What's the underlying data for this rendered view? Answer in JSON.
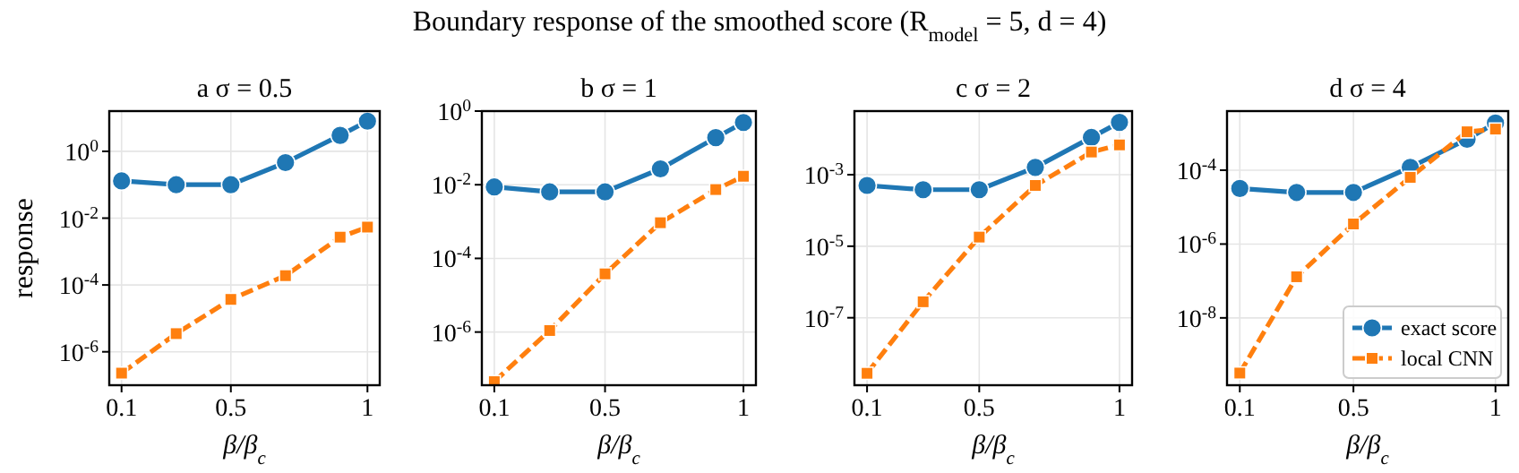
{
  "chart_data": [
    {
      "type": "line",
      "title": "a   σ = 0.5",
      "xlabel": "β/β$_{c}$",
      "ylabel": "response",
      "log": "y",
      "grid": true,
      "legend": false,
      "x": [
        0.1,
        0.3,
        0.5,
        0.7,
        0.9,
        1.0
      ],
      "xlim": [
        0.055,
        1.045
      ],
      "xticks": [
        0.1,
        0.5,
        1
      ],
      "ylim": [
        1e-07,
        16
      ],
      "yticks": [
        {
          "value": 1e-06,
          "label": "10$^{-6}$"
        },
        {
          "value": 0.0001,
          "label": "10$^{-4}$"
        },
        {
          "value": 0.01,
          "label": "10$^{-2}$"
        },
        {
          "value": 1,
          "label": "10$^{0}$"
        }
      ],
      "series": [
        {
          "color": "#1f77b4",
          "marker": "circle",
          "line_style": "solid",
          "values": [
            0.13,
            0.1,
            0.1,
            0.46,
            3.0,
            8
          ]
        },
        {
          "color": "#ff7f0e",
          "marker": "square",
          "line_style": "dashed",
          "values": [
            2.3e-07,
            3.5e-06,
            3.7e-05,
            0.00019,
            0.0027,
            0.0054
          ]
        }
      ]
    },
    {
      "type": "line",
      "title": "b   σ = 1",
      "xlabel": "β/β$_{c}$",
      "log": "y",
      "grid": true,
      "legend": false,
      "x": [
        0.1,
        0.3,
        0.5,
        0.7,
        0.9,
        1.0
      ],
      "xlim": [
        0.055,
        1.045
      ],
      "xticks": [
        0.1,
        0.5,
        1
      ],
      "ylim": [
        3.6e-08,
        1
      ],
      "yticks": [
        {
          "value": 1e-06,
          "label": "10$^{-6}$"
        },
        {
          "value": 0.0001,
          "label": "10$^{-4}$"
        },
        {
          "value": 0.01,
          "label": "10$^{-2}$"
        },
        {
          "value": 1,
          "label": "10$^{0}$"
        }
      ],
      "series": [
        {
          "color": "#1f77b4",
          "marker": "circle",
          "line_style": "solid",
          "values": [
            0.0087,
            0.0064,
            0.0064,
            0.027,
            0.19,
            0.49
          ]
        },
        {
          "color": "#ff7f0e",
          "marker": "square",
          "line_style": "dashed",
          "values": [
            4.5e-08,
            1.1e-06,
            3.8e-05,
            0.00093,
            0.0074,
            0.017
          ]
        }
      ]
    },
    {
      "type": "line",
      "title": "c   σ = 2",
      "xlabel": "β/β$_{c}$",
      "log": "y",
      "grid": true,
      "legend": false,
      "x": [
        0.1,
        0.3,
        0.5,
        0.7,
        0.9,
        1.0
      ],
      "xlim": [
        0.055,
        1.045
      ],
      "xticks": [
        0.1,
        0.5,
        1
      ],
      "ylim": [
        1.3e-09,
        0.06
      ],
      "yticks": [
        {
          "value": 1e-07,
          "label": "10$^{-7}$"
        },
        {
          "value": 1e-05,
          "label": "10$^{-5}$"
        },
        {
          "value": 0.001,
          "label": "10$^{-3}$"
        }
      ],
      "series": [
        {
          "color": "#1f77b4",
          "marker": "circle",
          "line_style": "solid",
          "values": [
            0.0005,
            0.00038,
            0.00038,
            0.0016,
            0.011,
            0.029
          ]
        },
        {
          "color": "#ff7f0e",
          "marker": "square",
          "line_style": "dashed",
          "values": [
            2.8e-09,
            2.8e-07,
            1.8e-05,
            0.0005,
            0.0043,
            0.0068
          ]
        }
      ]
    },
    {
      "type": "line",
      "title": "d   σ = 4",
      "xlabel": "β/β$_{c}$",
      "log": "y",
      "grid": true,
      "legend": "bottom right",
      "x": [
        0.1,
        0.3,
        0.5,
        0.7,
        0.9,
        1.0
      ],
      "xlim": [
        0.055,
        1.045
      ],
      "xticks": [
        0.1,
        0.5,
        1
      ],
      "ylim": [
        1.5e-10,
        0.004
      ],
      "yticks": [
        {
          "value": 1e-08,
          "label": "10$^{-8}$"
        },
        {
          "value": 1e-06,
          "label": "10$^{-6}$"
        },
        {
          "value": 0.0001,
          "label": "10$^{-4}$"
        }
      ],
      "annotations": [
        "Boundary response of the smoothed score (R$_{model}$ = 5, d = 4)"
      ],
      "series": [
        {
          "name": "exact score",
          "color": "#1f77b4",
          "marker": "circle",
          "line_style": "solid",
          "values": [
            3.2e-05,
            2.5e-05,
            2.5e-05,
            0.00012,
            0.00069,
            0.0019
          ]
        },
        {
          "name": "local CNN",
          "color": "#ff7f0e",
          "marker": "square",
          "line_style": "dashed",
          "values": [
            3.2e-10,
            1.3e-07,
            3.5e-06,
            6.4e-05,
            0.0011,
            0.0013
          ]
        }
      ]
    }
  ]
}
